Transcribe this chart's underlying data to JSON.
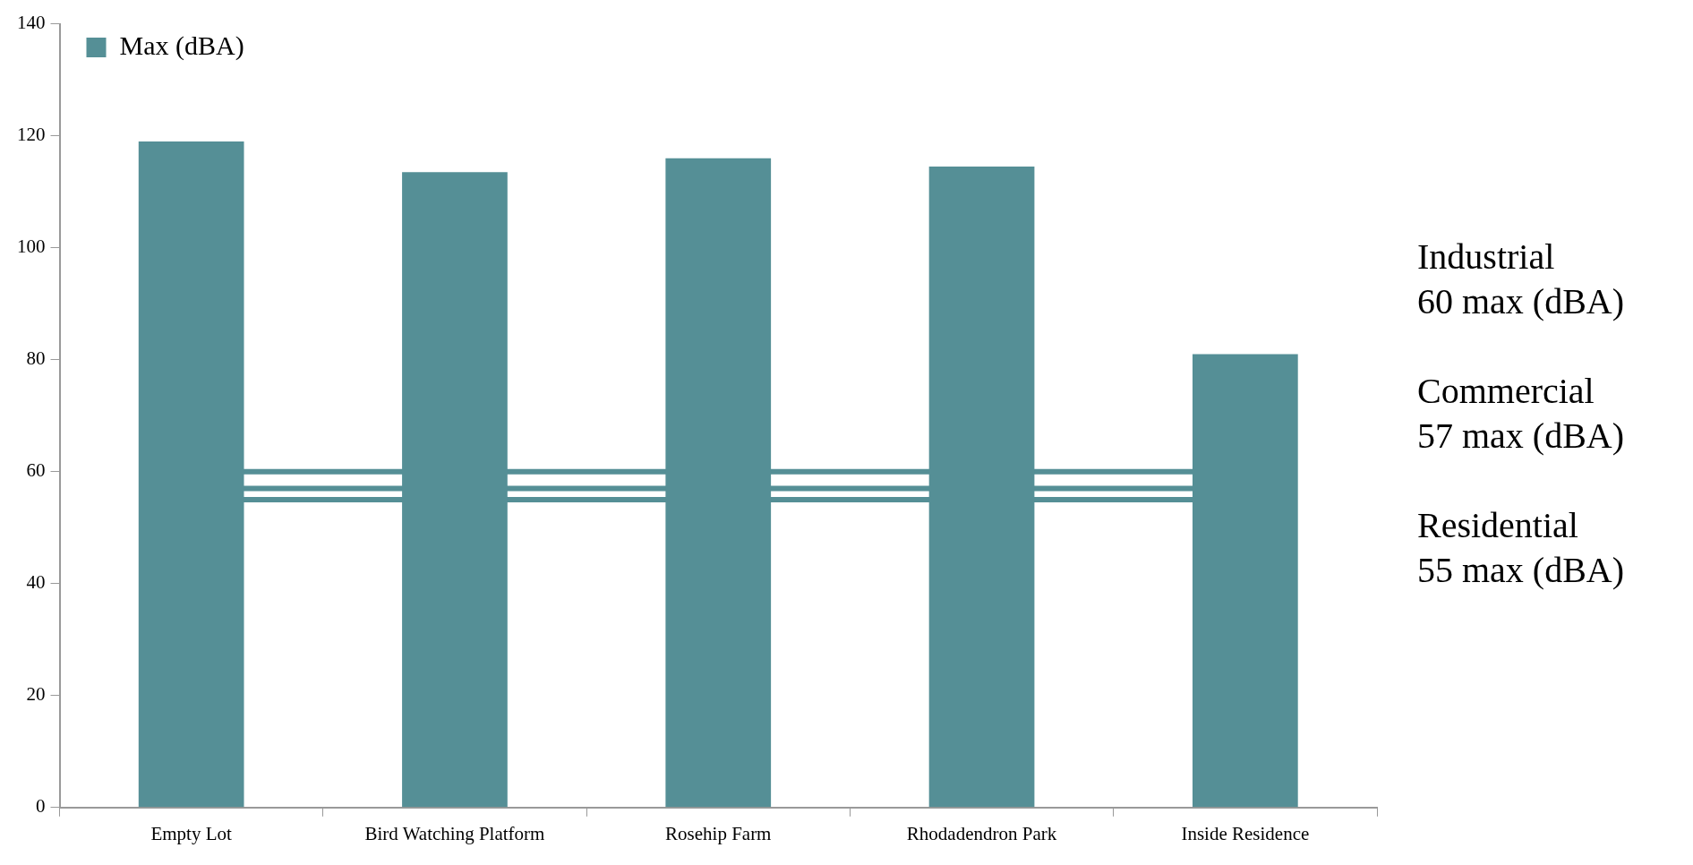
{
  "chart_data": {
    "type": "bar",
    "categories": [
      "Empty Lot",
      "Bird Watching Platform",
      "Rosehip Farm",
      "Rhodadendron Park",
      "Inside Residence"
    ],
    "series": [
      {
        "name": "Max (dBA)",
        "color": "#558f96",
        "values": [
          119,
          113.5,
          116,
          114.5,
          81
        ]
      }
    ],
    "ylim": [
      0,
      140
    ],
    "yticks": [
      0,
      20,
      40,
      60,
      80,
      100,
      120,
      140
    ],
    "grid": false,
    "legend": "top left",
    "ref_lines": [
      {
        "axis": "y",
        "value": 60,
        "color": "#558f96"
      },
      {
        "axis": "y",
        "value": 57,
        "color": "#558f96"
      },
      {
        "axis": "y",
        "value": 55,
        "color": "#558f96"
      }
    ],
    "annotations": [
      "Industrial 60 max (dBA)",
      "Commercial 57 max (dBA)",
      "Residential 55 max (dBA)"
    ]
  }
}
